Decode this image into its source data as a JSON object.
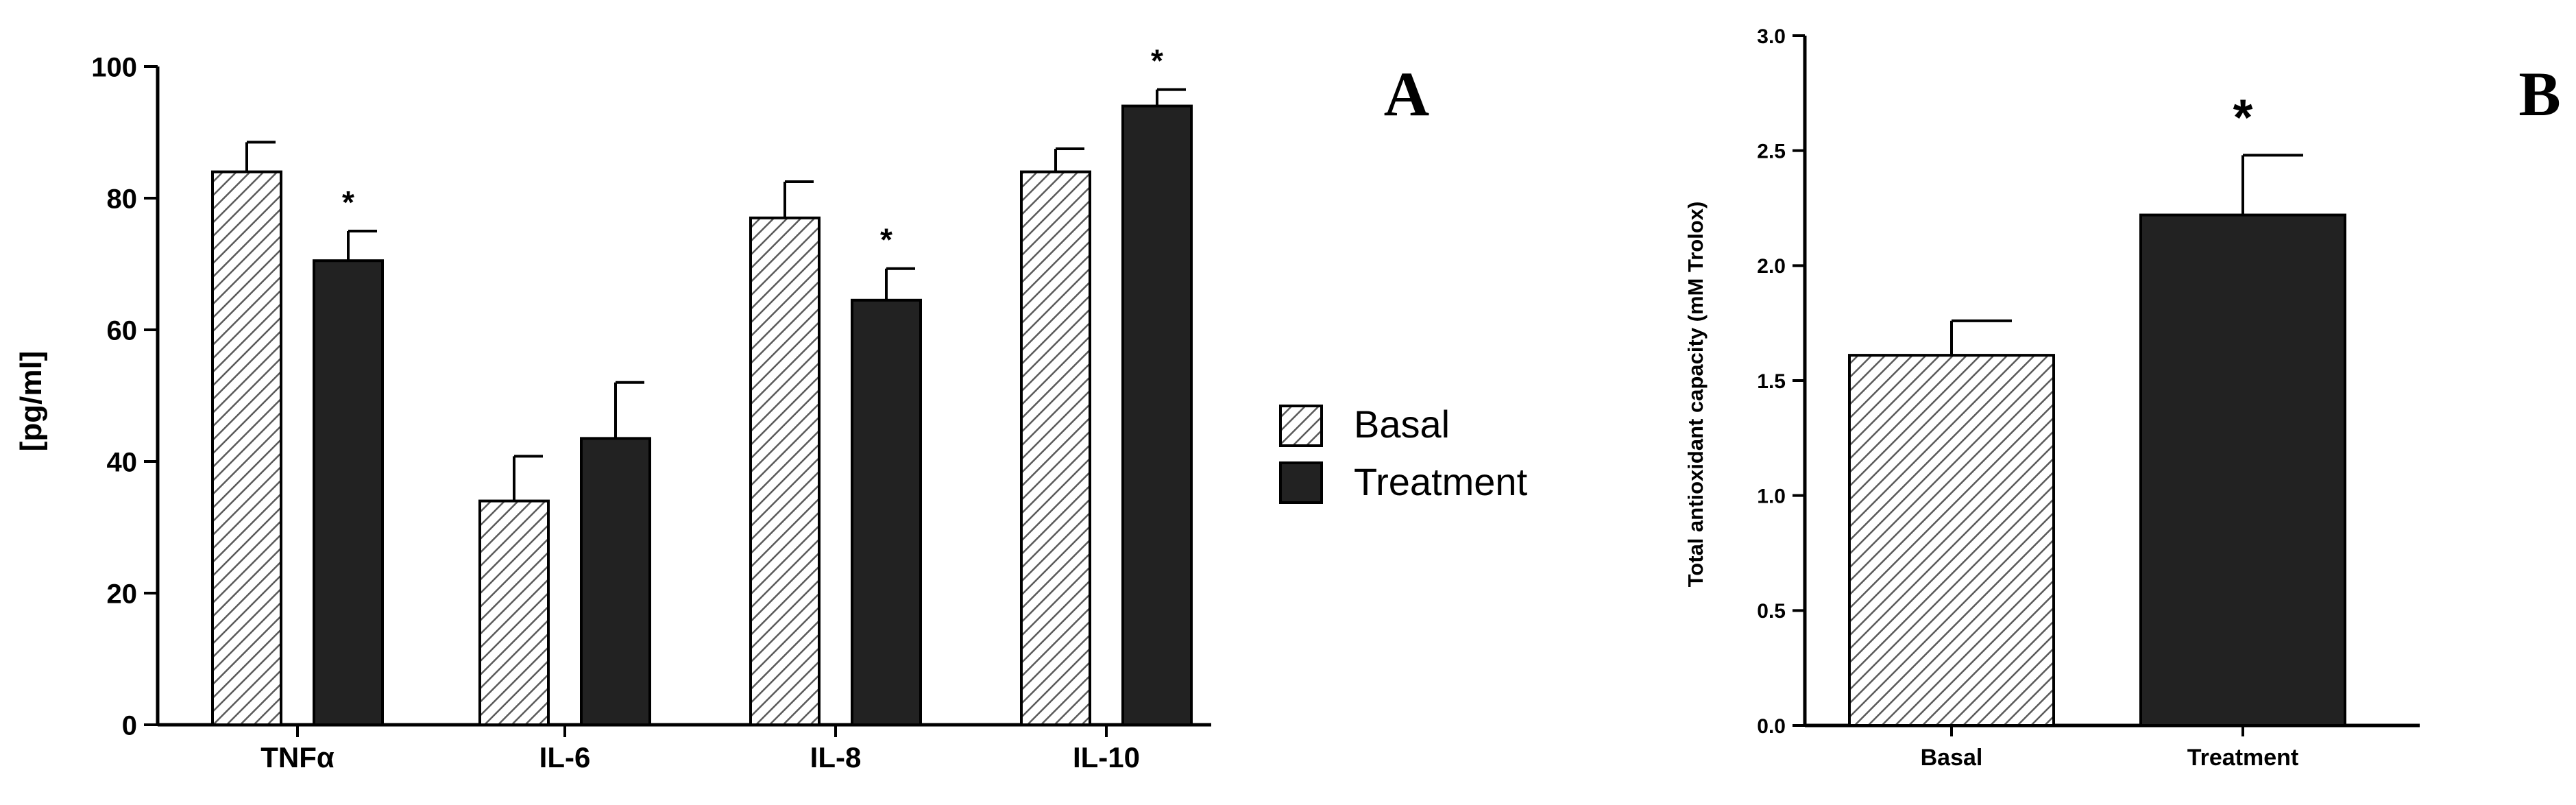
{
  "colors": {
    "basal_fill": "#ffffff",
    "basal_hatch": "#5a5a5a",
    "treatment_fill": "#222222",
    "axis": "#000000"
  },
  "legend": {
    "entries": [
      "Basal",
      "Treatment"
    ]
  },
  "chart_data": [
    {
      "type": "bar",
      "panel_label": "A",
      "title": "",
      "xlabel": "",
      "ylabel": "[pg/ml]",
      "ylim": [
        0,
        100
      ],
      "yticks": [
        0,
        20,
        40,
        60,
        80,
        100
      ],
      "ytick_labels": [
        "0",
        "20",
        "40",
        "60",
        "80",
        "100"
      ],
      "categories": [
        "TNFα",
        "IL-6",
        "IL-8",
        "IL-10"
      ],
      "series": [
        {
          "name": "Basal",
          "pattern": "hatch",
          "values": [
            84,
            34,
            77,
            84
          ],
          "errors": [
            4.5,
            6.8,
            5.5,
            3.5
          ]
        },
        {
          "name": "Treatment",
          "pattern": "solid",
          "values": [
            70.5,
            43.5,
            64.5,
            94
          ],
          "errors": [
            4.5,
            8.5,
            4.8,
            2.5
          ]
        }
      ],
      "significance": [
        {
          "category": "TNFα",
          "series": "Treatment",
          "label": "*"
        },
        {
          "category": "IL-8",
          "series": "Treatment",
          "label": "*"
        },
        {
          "category": "IL-10",
          "series": "Treatment",
          "label": "*"
        }
      ],
      "legend_position": "right",
      "grid": false
    },
    {
      "type": "bar",
      "panel_label": "B",
      "title": "",
      "xlabel": "",
      "ylabel": "Total antioxidant capacity (mM Trolox)",
      "ylim": [
        0,
        3
      ],
      "yticks": [
        0,
        0.5,
        1,
        1.5,
        2,
        2.5,
        3
      ],
      "ytick_labels": [
        "0.0",
        "0.5",
        "1.0",
        "1.5",
        "2.0",
        "2.5",
        "3.0"
      ],
      "categories": [
        "Basal",
        "Treatment"
      ],
      "values": [
        1.61,
        2.22
      ],
      "errors": [
        0.15,
        0.26
      ],
      "patterns": [
        "hatch",
        "solid"
      ],
      "significance": [
        {
          "category": "Treatment",
          "label": "*"
        }
      ],
      "grid": false
    }
  ]
}
